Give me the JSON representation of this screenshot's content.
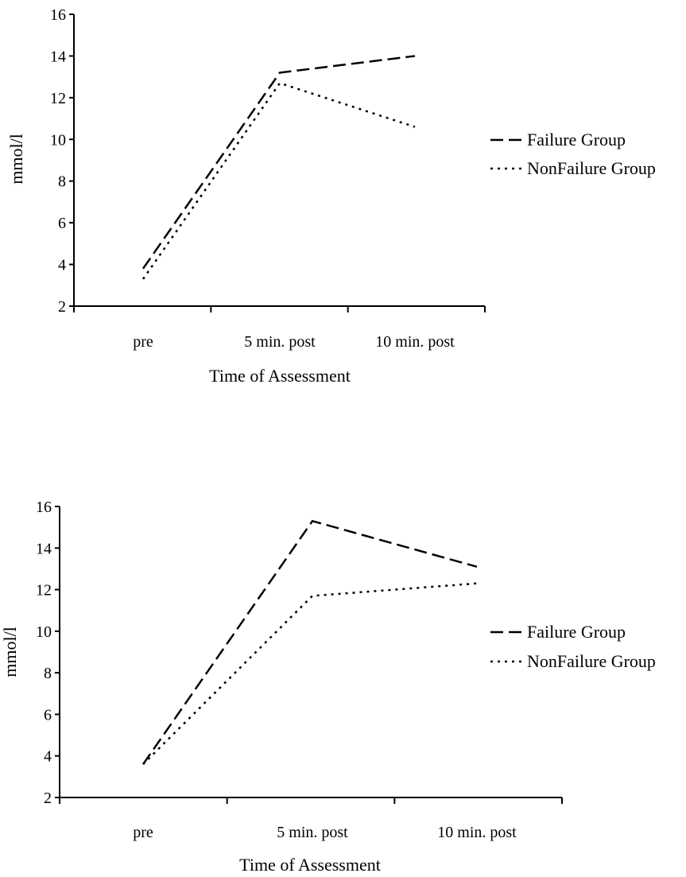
{
  "chart_data": [
    {
      "type": "line",
      "categories": [
        "pre",
        "5 min. post",
        "10 min. post"
      ],
      "xlabel": "Time of Assessment",
      "ylabel": "mmol/l",
      "ylim": [
        2,
        16
      ],
      "yticks": [
        2,
        4,
        6,
        8,
        10,
        12,
        14,
        16
      ],
      "grid": false,
      "legend_placement": "right",
      "series": [
        {
          "name": "Failure Group",
          "style": "dashed",
          "values": [
            3.8,
            13.2,
            14.0
          ]
        },
        {
          "name": "NonFailure Group",
          "style": "dotted",
          "values": [
            3.3,
            12.7,
            10.6
          ]
        }
      ]
    },
    {
      "type": "line",
      "categories": [
        "pre",
        "5 min. post",
        "10 min. post"
      ],
      "xlabel": "Time of Assessment",
      "ylabel": "mmol/l",
      "ylim": [
        2,
        16
      ],
      "yticks": [
        2,
        4,
        6,
        8,
        10,
        12,
        14,
        16
      ],
      "grid": false,
      "legend_placement": "right",
      "series": [
        {
          "name": "Failure Group",
          "style": "dashed",
          "values": [
            3.6,
            15.3,
            13.1
          ]
        },
        {
          "name": "NonFailure Group",
          "style": "dotted",
          "values": [
            3.6,
            11.7,
            12.3
          ]
        }
      ]
    }
  ]
}
